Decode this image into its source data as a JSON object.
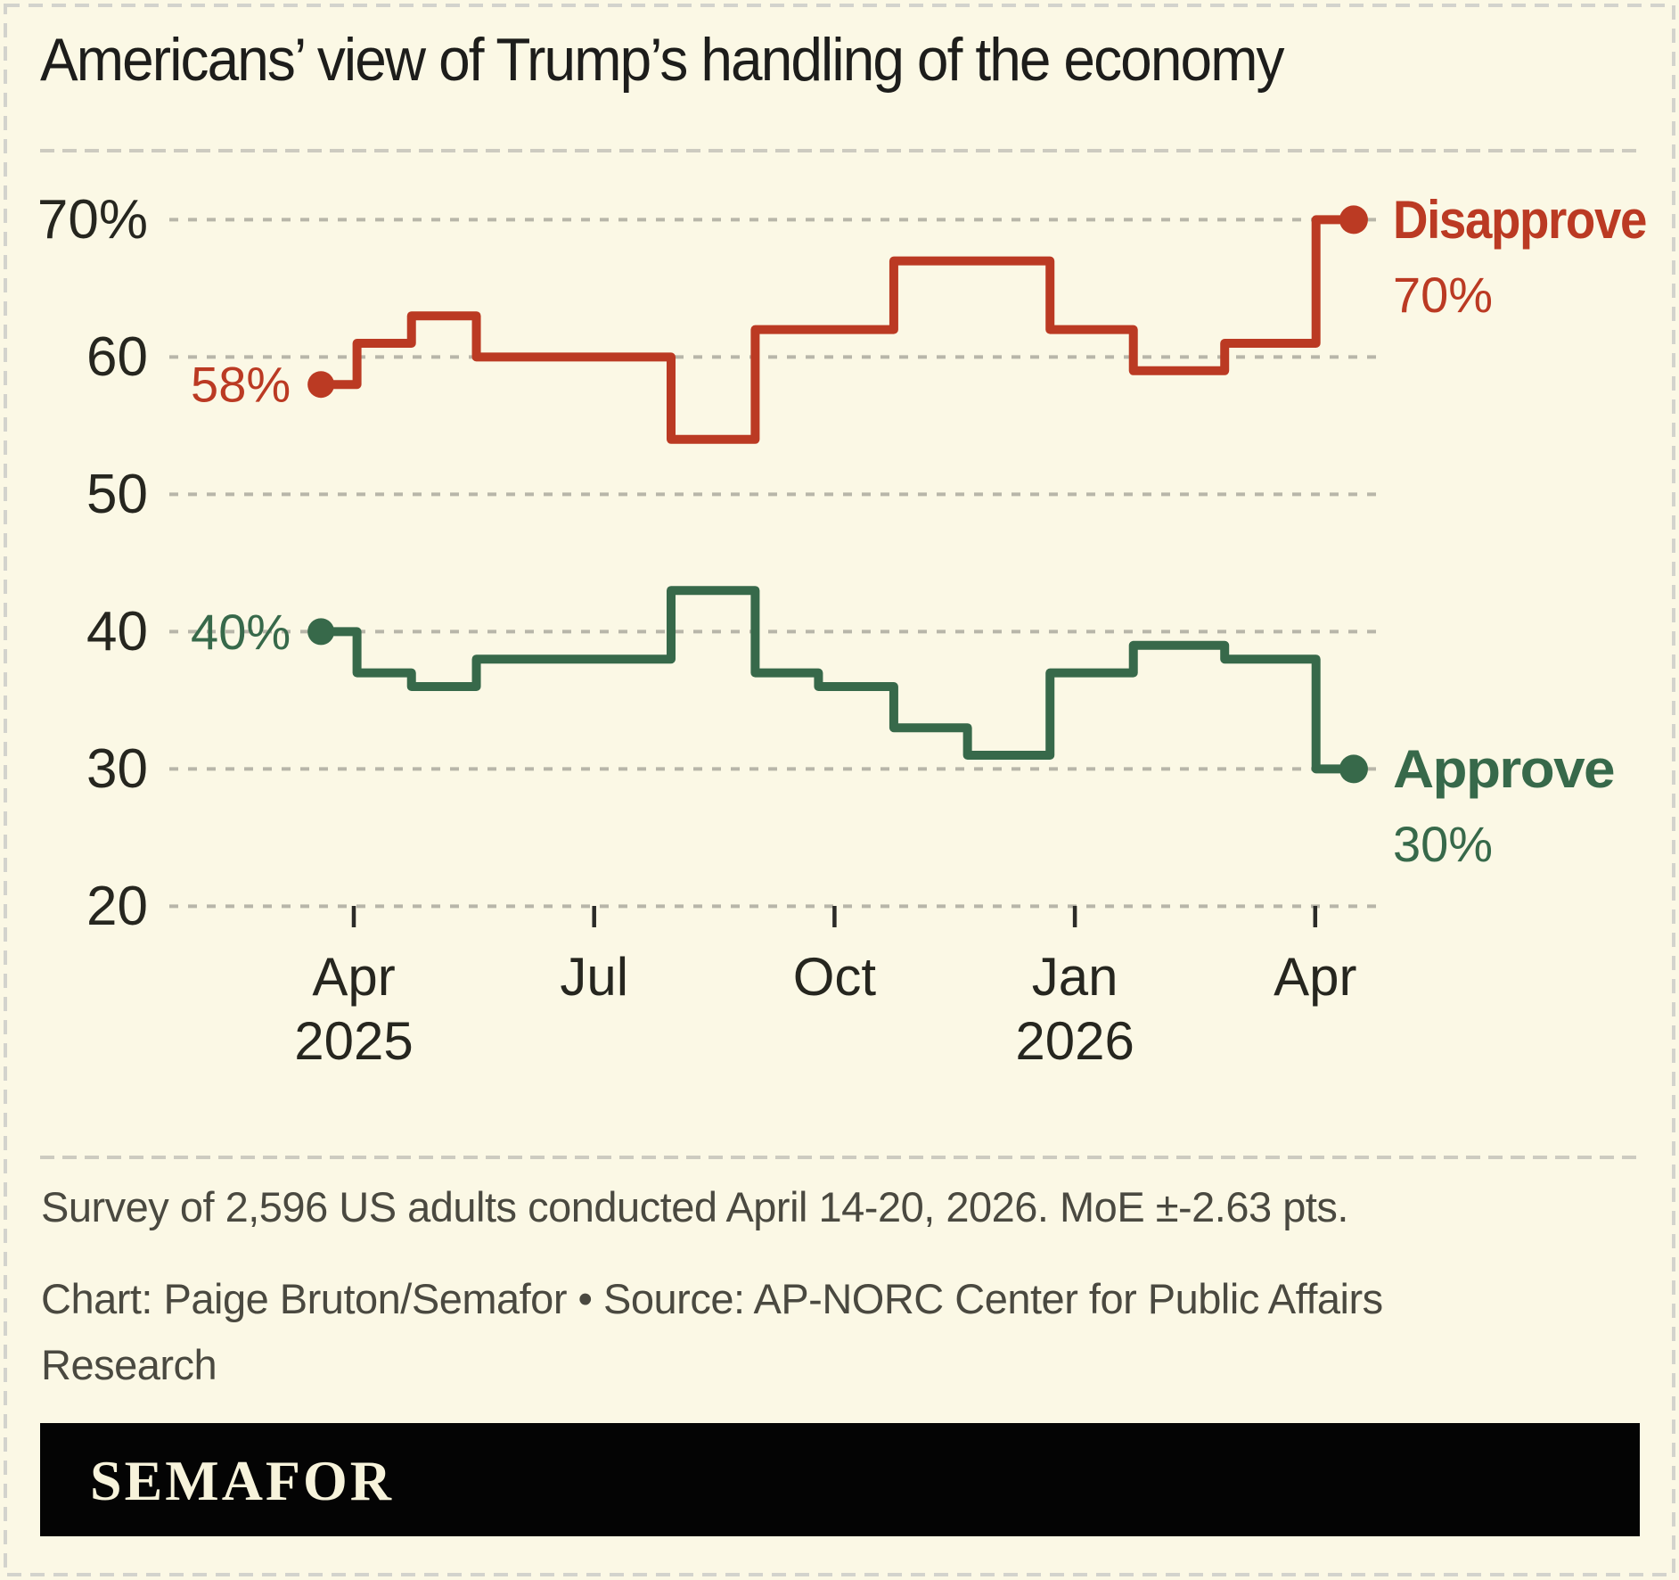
{
  "title": "Americans’ view of Trump’s handling of the economy",
  "footer": {
    "line1": "Survey of 2,596 US adults conducted April 14-20, 2026. MoE ±-2.63 pts.",
    "line2": "Chart: Paige Bruton/Semafor • Source: AP-NORC Center for Public Affairs Research"
  },
  "brand": {
    "wordmark": "SEMAFOR"
  },
  "colors": {
    "background": "#fbf8e5",
    "disapprove": "#bb3a23",
    "approve": "#37694a",
    "gridline": "#b8b6a9",
    "separator": "#cdcbc0",
    "border": "#d3d3cd",
    "axis_text": "#26261f",
    "tick_mark": "#2b2b28",
    "title_text": "#1d1d1b",
    "footer_text": "#4a4940",
    "bar_bg": "#040404",
    "bar_text": "#f7f3db"
  },
  "chart_data": {
    "type": "line",
    "step": true,
    "title": "Americans’ view of Trump’s handling of the economy",
    "x_unit": "months_since_apr_2025",
    "x": [
      -0.41,
      0.04,
      0.72,
      1.53,
      3.96,
      5.01,
      5.8,
      6.74,
      7.66,
      8.69,
      9.73,
      10.87,
      12.01
    ],
    "x_line_end": 12.48,
    "series": [
      {
        "name": "Disapprove",
        "color_key": "disapprove",
        "values": [
          58,
          61,
          63,
          60,
          54,
          62,
          62,
          67,
          67,
          62,
          59,
          61,
          70
        ],
        "start_label": "58%",
        "end_label": "Disapprove",
        "end_value_label": "70%"
      },
      {
        "name": "Approve",
        "color_key": "approve",
        "values": [
          40,
          37,
          36,
          38,
          43,
          37,
          36,
          33,
          31,
          37,
          39,
          38,
          30
        ],
        "start_label": "40%",
        "end_label": "Approve",
        "end_value_label": "30%"
      }
    ],
    "y_axis": {
      "range": [
        20,
        70
      ],
      "grid": true,
      "ticks": [
        {
          "value": 70,
          "label": "70%"
        },
        {
          "value": 60,
          "label": "60"
        },
        {
          "value": 50,
          "label": "50"
        },
        {
          "value": 40,
          "label": "40"
        },
        {
          "value": 30,
          "label": "30"
        },
        {
          "value": 20,
          "label": "20"
        }
      ]
    },
    "x_axis": {
      "ticks": [
        {
          "label": "Apr",
          "year": "2025",
          "t": 0
        },
        {
          "label": "Jul",
          "year": "",
          "t": 3
        },
        {
          "label": "Oct",
          "year": "",
          "t": 6
        },
        {
          "label": "Jan",
          "year": "2026",
          "t": 9
        },
        {
          "label": "Apr",
          "year": "",
          "t": 12
        }
      ]
    },
    "legend_position": "line-end-labels"
  }
}
